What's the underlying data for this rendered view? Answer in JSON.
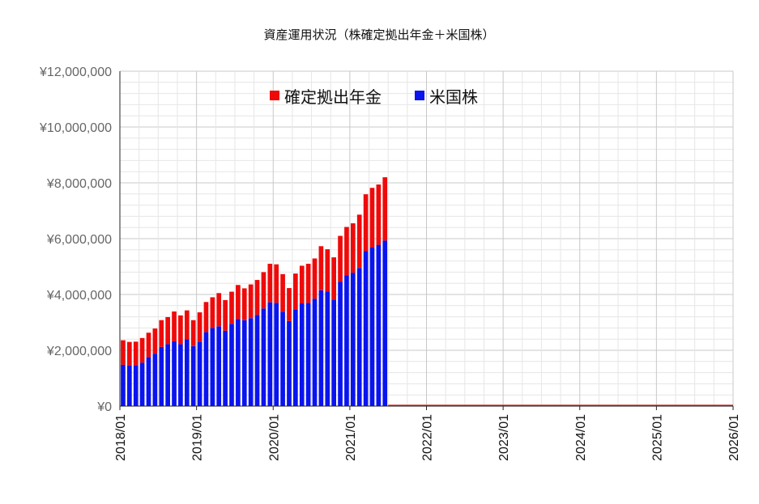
{
  "chart_data": {
    "type": "bar",
    "stacked": true,
    "title": "資産運用状況（株確定拠出年金＋米国株）",
    "xlabel": "",
    "ylabel": "",
    "ylim": [
      0,
      12000000
    ],
    "y_ticks": [
      "¥0",
      "¥2,000,000",
      "¥4,000,000",
      "¥6,000,000",
      "¥8,000,000",
      "¥10,000,000",
      "¥12,000,000"
    ],
    "x_ticks": [
      "2018/01",
      "2019/01",
      "2020/01",
      "2021/01",
      "2022/01",
      "2023/01",
      "2024/01",
      "2025/01",
      "2026/01"
    ],
    "grid": true,
    "legend": "top",
    "colors": {
      "us_stocks": "#0a14ef",
      "dc_pension": "#ef0a0a"
    },
    "series": [
      {
        "name": "米国株",
        "values": [
          1480000,
          1460000,
          1470000,
          1560000,
          1760000,
          1880000,
          2120000,
          2220000,
          2320000,
          2220000,
          2400000,
          2150000,
          2310000,
          2650000,
          2800000,
          2860000,
          2700000,
          2950000,
          3120000,
          3080000,
          3150000,
          3270000,
          3500000,
          3720000,
          3700000,
          3380000,
          3050000,
          3450000,
          3680000,
          3700000,
          3850000,
          4150000,
          4100000,
          3820000,
          4450000,
          4680000,
          4780000,
          4950000,
          5550000,
          5680000,
          5780000,
          5930000
        ]
      },
      {
        "name": "確定拠出年金",
        "values": [
          880000,
          840000,
          840000,
          880000,
          870000,
          900000,
          960000,
          970000,
          1070000,
          1030000,
          1030000,
          930000,
          1050000,
          1080000,
          1100000,
          1190000,
          1100000,
          1150000,
          1220000,
          1140000,
          1210000,
          1250000,
          1300000,
          1380000,
          1380000,
          1350000,
          1180000,
          1300000,
          1350000,
          1400000,
          1440000,
          1580000,
          1520000,
          1510000,
          1650000,
          1740000,
          1770000,
          1910000,
          2040000,
          2140000,
          2160000,
          2270000
        ]
      }
    ]
  }
}
